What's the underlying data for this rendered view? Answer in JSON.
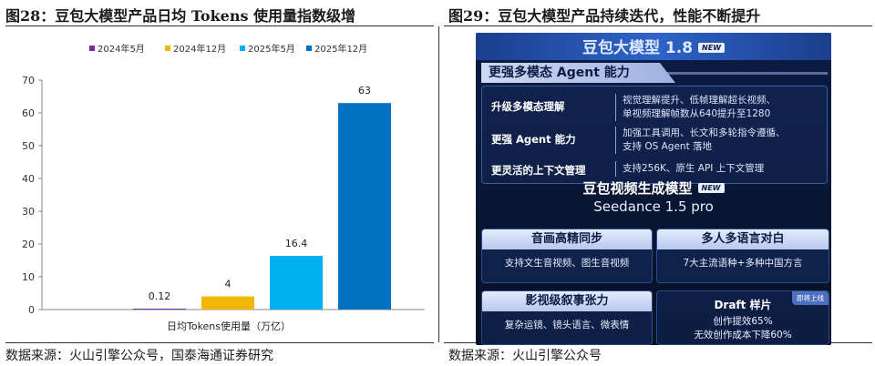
{
  "left_figure": {
    "title": "图28：豆包大模型产品日均 Tokens 使用量指数级增",
    "source": "数据来源：火山引擎公众号，国泰海通证券研究"
  },
  "right_figure": {
    "title": "图29：豆包大模型产品持续迭代，性能不断提升",
    "source": "数据来源：火山引擎公众号",
    "header": "豆包大模型 1.8",
    "new_badge": "NEW",
    "section_head": "更强多模态 Agent 能力",
    "features": [
      {
        "name": "升级多模态理解",
        "desc": [
          "视觉理解提升、低帧理解超长视频、",
          "单视频理解帧数从640提升至1280"
        ]
      },
      {
        "name": "更强 Agent 能力",
        "desc": [
          "加强工具调用、长文和多轮指令遵循、",
          "支持 OS Agent 落地"
        ]
      },
      {
        "name": "更灵活的上下文管理",
        "desc": [
          "支持256K、原生 API 上下文管理"
        ]
      }
    ],
    "seedance_title": "豆包视频生成模型",
    "seedance_badge": "NEW",
    "seedance_subtitle": "Seedance 1.5 pro",
    "cards": [
      {
        "head": "音画高精同步",
        "body": "支持文生音视频、图生音视频"
      },
      {
        "head": "多人多语言对白",
        "body": "7大主流语种+多种中国方言"
      },
      {
        "head": "影视级叙事张力",
        "body": "复杂运镜、镜头语言、微表情"
      }
    ],
    "draft": {
      "title": "Draft 样片",
      "tag": "即将上线",
      "line1": "创作提效65%",
      "line2": "无效创作成本下降60%"
    }
  },
  "chart_data": {
    "type": "bar",
    "title": "",
    "xlabel": "日均Tokens使用量（万亿）",
    "ylabel": "",
    "ylim": [
      0,
      70
    ],
    "yticks": [
      0,
      10,
      20,
      30,
      40,
      50,
      60,
      70
    ],
    "grid": false,
    "legend": "top",
    "categories": [
      "2024年5月",
      "2024年12月",
      "2025年5月",
      "2025年12月"
    ],
    "values": [
      0.12,
      4,
      16.4,
      63
    ],
    "value_labels": [
      "0.12",
      "4",
      "16.4",
      "63"
    ],
    "colors": [
      "#7030a0",
      "#f2b705",
      "#00b0f0",
      "#0070c0"
    ]
  }
}
